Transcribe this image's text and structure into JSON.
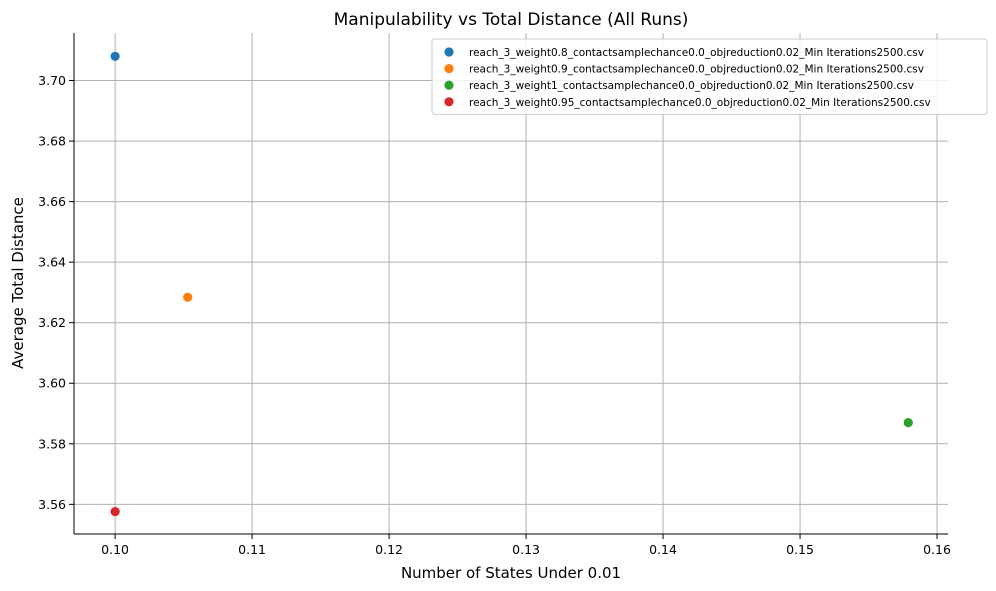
{
  "chart_data": {
    "type": "scatter",
    "title": "Manipulability vs Total Distance (All Runs)",
    "xlabel": "Number of States Under 0.01",
    "ylabel": "Average Total Distance",
    "xlim": [
      0.097,
      0.1608
    ],
    "ylim": [
      3.5502,
      3.7157
    ],
    "xticks": [
      0.1,
      0.11,
      0.12,
      0.13,
      0.14,
      0.15,
      0.16
    ],
    "xtick_labels": [
      "0.10",
      "0.11",
      "0.12",
      "0.13",
      "0.14",
      "0.15",
      "0.16"
    ],
    "yticks": [
      3.56,
      3.58,
      3.6,
      3.62,
      3.64,
      3.66,
      3.68,
      3.7
    ],
    "ytick_labels": [
      "3.56",
      "3.58",
      "3.60",
      "3.62",
      "3.64",
      "3.66",
      "3.68",
      "3.70"
    ],
    "grid": true,
    "legend_position": "top-right",
    "series": [
      {
        "name": "reach_3_weight0.8_contactsamplechance0.0_objreduction0.02_Min Iterations2500.csv",
        "color": "#1f77b4",
        "x": [
          0.1
        ],
        "y": [
          3.708
        ]
      },
      {
        "name": "reach_3_weight0.9_contactsamplechance0.0_objreduction0.02_Min Iterations2500.csv",
        "color": "#ff7f0e",
        "x": [
          0.1053
        ],
        "y": [
          3.6284
        ]
      },
      {
        "name": "reach_3_weight1_contactsamplechance0.0_objreduction0.02_Min Iterations2500.csv",
        "color": "#2ca02c",
        "x": [
          0.1579
        ],
        "y": [
          3.587
        ]
      },
      {
        "name": "reach_3_weight0.95_contactsamplechance0.0_objreduction0.02_Min Iterations2500.csv",
        "color": "#d62728",
        "x": [
          0.1
        ],
        "y": [
          3.5576
        ]
      }
    ]
  }
}
